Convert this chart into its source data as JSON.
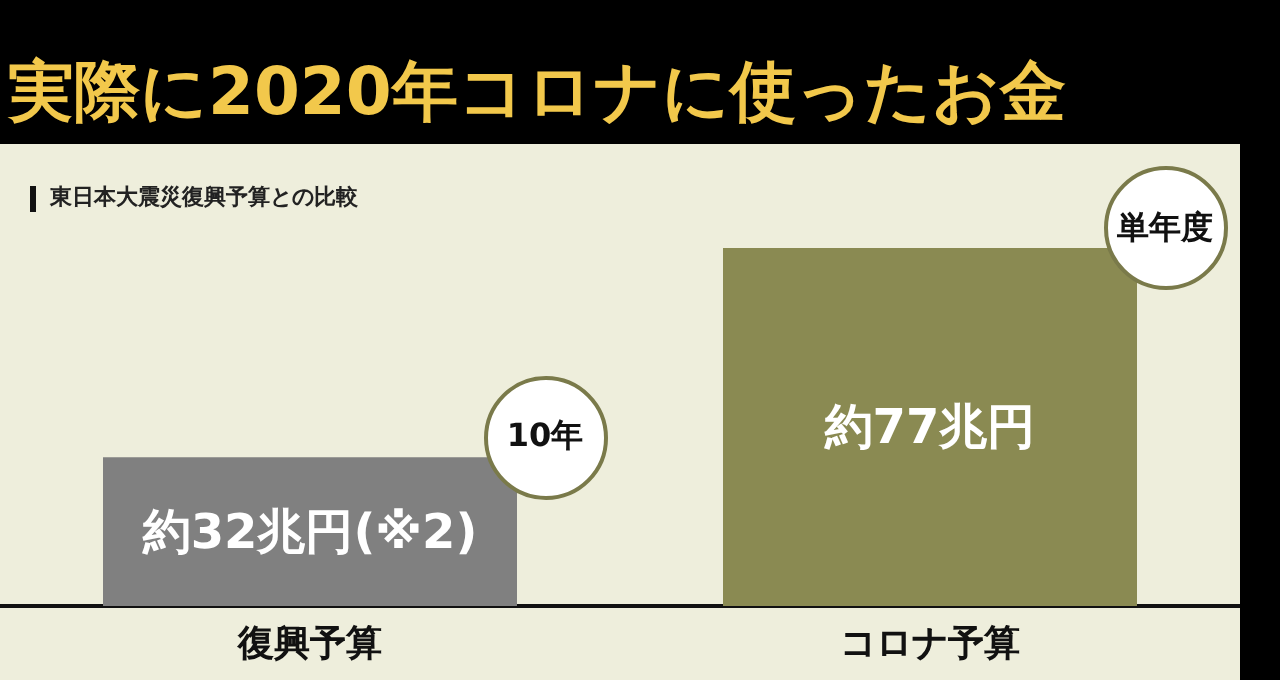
{
  "chart_data": {
    "type": "bar",
    "title": "実際に2020年コロナに使ったお金",
    "subtitle": "東日本大震災復興予算との比較",
    "categories": [
      "復興予算",
      "コロナ予算"
    ],
    "values": [
      32,
      77
    ],
    "colors": [
      "#808080",
      "#8a8a52"
    ],
    "value_labels": [
      "約32兆円(※2)",
      "約77兆円"
    ],
    "annotations": [
      "10年",
      "単年度"
    ]
  }
}
